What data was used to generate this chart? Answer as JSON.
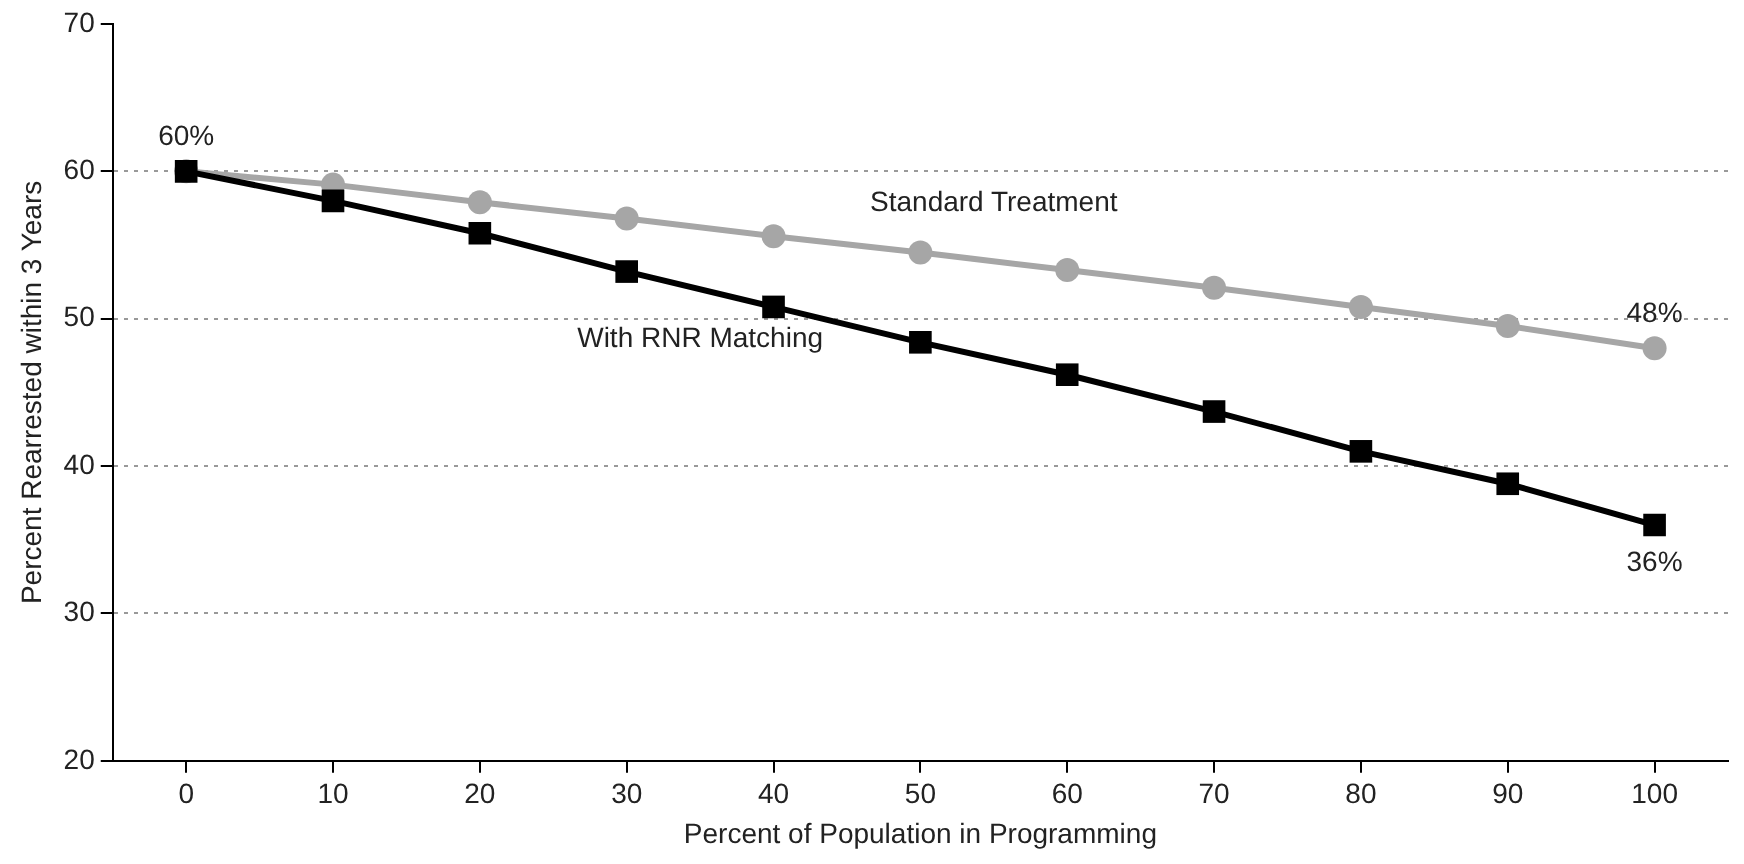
{
  "chart_data": {
    "type": "line",
    "xlabel": "Percent of Population in Programming",
    "ylabel": "Percent Rearrested within 3 Years",
    "x": [
      0,
      10,
      20,
      30,
      40,
      50,
      60,
      70,
      80,
      90,
      100
    ],
    "xlim": [
      -5,
      105
    ],
    "xticks": [
      0,
      10,
      20,
      30,
      40,
      50,
      60,
      70,
      80,
      90,
      100
    ],
    "ylim": [
      20,
      70
    ],
    "yticks": [
      20,
      30,
      40,
      50,
      60,
      70
    ],
    "grid": "y",
    "legend": false,
    "line_style": "solid",
    "series": [
      {
        "name": "Standard Treatment",
        "color": "#a6a6a6",
        "marker": "circle",
        "values": [
          60,
          59.1,
          57.9,
          56.8,
          55.6,
          54.5,
          53.3,
          52.1,
          50.8,
          49.5,
          48
        ],
        "value_labels": [
          "60%",
          null,
          null,
          null,
          null,
          null,
          null,
          null,
          null,
          null,
          "48%"
        ]
      },
      {
        "name": "With RNR Matching",
        "color": "#000000",
        "marker": "square",
        "values": [
          60,
          58,
          55.8,
          53.2,
          50.8,
          48.4,
          46.2,
          43.7,
          41,
          38.8,
          36
        ],
        "value_labels": [
          null,
          null,
          null,
          null,
          null,
          null,
          null,
          null,
          null,
          null,
          "36%"
        ]
      }
    ]
  }
}
